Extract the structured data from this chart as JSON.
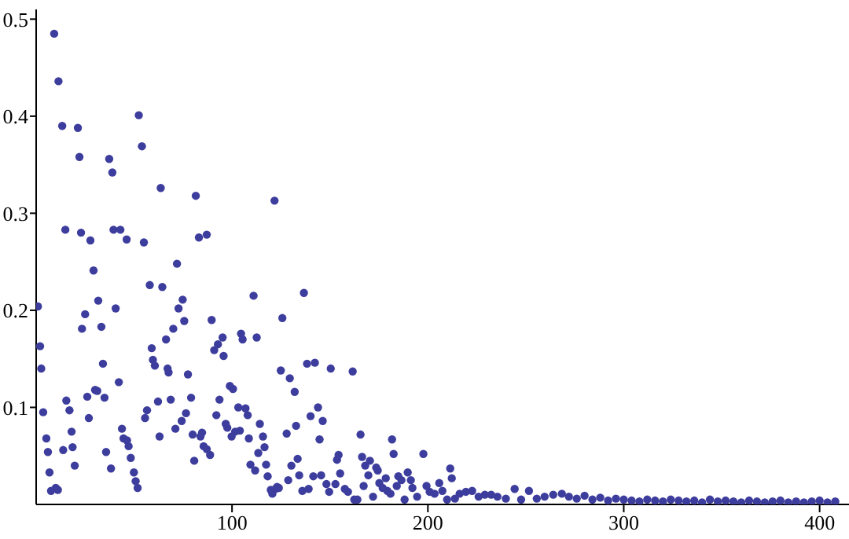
{
  "chart_data": {
    "type": "scatter",
    "color": "#3d3d9e",
    "marker": "circle",
    "grid": false,
    "legend": false,
    "xlim": [
      0,
      415
    ],
    "ylim": [
      0,
      0.51
    ],
    "xticks": [
      100,
      200,
      300,
      400
    ],
    "yticks": [
      0.1,
      0.2,
      0.3,
      0.4,
      0.5
    ],
    "x": [
      9.2,
      11.4,
      13.3,
      21.3,
      22.1,
      37.3,
      38.9,
      52.4,
      54,
      63.6,
      81.5,
      121.7,
      14.9,
      22.9,
      27.7,
      39.5,
      43,
      46.2,
      55,
      83.1,
      87.1,
      71.9,
      29.3,
      0.9,
      2,
      2.6,
      3.6,
      5.2,
      6,
      6.8,
      7.6,
      10,
      11.1,
      13.8,
      15.4,
      17,
      18.1,
      18.6,
      19.7,
      23.4,
      25,
      26.1,
      26.9,
      30.1,
      31.2,
      31.7,
      33.3,
      34.1,
      34.9,
      35.7,
      38.2,
      40.6,
      42.2,
      43.8,
      44.6,
      46.4,
      47.2,
      48.3,
      49.9,
      50.8,
      51.8,
      55.6,
      56.6,
      58,
      59,
      59.6,
      60.6,
      62.2,
      63,
      64.4,
      66.3,
      67.1,
      67.6,
      68.7,
      70,
      71.1,
      72.7,
      74.3,
      74.8,
      75.6,
      76.5,
      77.5,
      79.1,
      79.9,
      80.7,
      83.9,
      84.7,
      85.5,
      87.1,
      88.8,
      89.6,
      90.9,
      92,
      92.8,
      93.6,
      95.2,
      95.7,
      96.8,
      97.6,
      98.9,
      100.5,
      99.8,
      101.6,
      103.2,
      104,
      104.6,
      105.4,
      106.9,
      108,
      108.6,
      109.4,
      111,
      111.8,
      112.6,
      113.4,
      114.2,
      115.8,
      116.6,
      117.4,
      118.2,
      119.8,
      120.6,
      122.2,
      123.9,
      124.9,
      125.7,
      136.7,
      129.5,
      132,
      138.3,
      142.3,
      150.4,
      161.6,
      127.9,
      132.7,
      130.3,
      133.5,
      134.3,
      128.7,
      123,
      140.1,
      143.9,
      146.3,
      144.7,
      141.5,
      145.5,
      135.9,
      139.1,
      148.2,
      149.6,
      152.8,
      153.6,
      154.4,
      155.2,
      157.6,
      159.2,
      162.4,
      164,
      165.6,
      166.4,
      168,
      167.2,
      169.6,
      170.4,
      172,
      173.6,
      174.4,
      175.2,
      176.9,
      178.5,
      179.3,
      180.9,
      181.7,
      182.5,
      184.1,
      184.9,
      186.5,
      188.1,
      189.7,
      191.3,
      192.1,
      194.5,
      197.7,
      199.3,
      200.9,
      203.4,
      205.8,
      207.4,
      209.8,
      211.4,
      212.2,
      213.8,
      216.2,
      219.4,
      222.6,
      225.9,
      229.1,
      232.3,
      235.5,
      239.8,
      244.3,
      247.6,
      251.6,
      255.6,
      259.6,
      264,
      268.4,
      272,
      276,
      280,
      284,
      288,
      292,
      296,
      300,
      304,
      308,
      312,
      316,
      320,
      324,
      328,
      332,
      336,
      340,
      344,
      348,
      352,
      356,
      360,
      364,
      368,
      372,
      376,
      380,
      384,
      388,
      392,
      396,
      400,
      404,
      408
    ],
    "values": [
      0.485,
      0.436,
      0.39,
      0.388,
      0.358,
      0.356,
      0.342,
      0.401,
      0.369,
      0.326,
      0.318,
      0.313,
      0.283,
      0.28,
      0.272,
      0.283,
      0.283,
      0.273,
      0.27,
      0.275,
      0.278,
      0.248,
      0.241,
      0.204,
      0.163,
      0.14,
      0.095,
      0.068,
      0.054,
      0.033,
      0.014,
      0.017,
      0.015,
      0.056,
      0.107,
      0.097,
      0.075,
      0.059,
      0.04,
      0.181,
      0.196,
      0.111,
      0.089,
      0.118,
      0.117,
      0.21,
      0.183,
      0.145,
      0.11,
      0.054,
      0.037,
      0.202,
      0.126,
      0.078,
      0.068,
      0.066,
      0.06,
      0.048,
      0.033,
      0.024,
      0.017,
      0.089,
      0.097,
      0.226,
      0.161,
      0.149,
      0.143,
      0.106,
      0.07,
      0.224,
      0.17,
      0.14,
      0.136,
      0.108,
      0.181,
      0.078,
      0.202,
      0.086,
      0.211,
      0.189,
      0.094,
      0.134,
      0.11,
      0.072,
      0.045,
      0.07,
      0.074,
      0.06,
      0.057,
      0.051,
      0.19,
      0.159,
      0.092,
      0.165,
      0.108,
      0.172,
      0.153,
      0.083,
      0.079,
      0.122,
      0.119,
      0.07,
      0.075,
      0.1,
      0.076,
      0.176,
      0.17,
      0.099,
      0.092,
      0.068,
      0.041,
      0.215,
      0.035,
      0.172,
      0.053,
      0.083,
      0.07,
      0.059,
      0.041,
      0.029,
      0.015,
      0.011,
      0.016,
      0.017,
      0.138,
      0.192,
      0.218,
      0.13,
      0.116,
      0.145,
      0.146,
      0.14,
      0.137,
      0.073,
      0.081,
      0.04,
      0.047,
      0.03,
      0.025,
      0.018,
      0.091,
      0.1,
      0.086,
      0.067,
      0.029,
      0.03,
      0.014,
      0.016,
      0.021,
      0.013,
      0.021,
      0.046,
      0.051,
      0.032,
      0.016,
      0.013,
      0.005,
      0.005,
      0.072,
      0.049,
      0.04,
      0.019,
      0.03,
      0.045,
      0.008,
      0.038,
      0.035,
      0.022,
      0.017,
      0.027,
      0.014,
      0.011,
      0.067,
      0.052,
      0.019,
      0.029,
      0.025,
      0.005,
      0.033,
      0.025,
      0.017,
      0.008,
      0.052,
      0.019,
      0.013,
      0.011,
      0.022,
      0.014,
      0.005,
      0.037,
      0.027,
      0.006,
      0.011,
      0.013,
      0.014,
      0.008,
      0.01,
      0.01,
      0.008,
      0.006,
      0.016,
      0.005,
      0.014,
      0.006,
      0.008,
      0.01,
      0.011,
      0.008,
      0.006,
      0.009,
      0.005,
      0.007,
      0.004,
      0.006,
      0.005,
      0.004,
      0.003,
      0.005,
      0.004,
      0.003,
      0.005,
      0.004,
      0.003,
      0.004,
      0.002,
      0.005,
      0.003,
      0.004,
      0.003,
      0.002,
      0.004,
      0.003,
      0.002,
      0.003,
      0.004,
      0.002,
      0.003,
      0.002,
      0.003,
      0.004,
      0.002,
      0.003
    ]
  }
}
